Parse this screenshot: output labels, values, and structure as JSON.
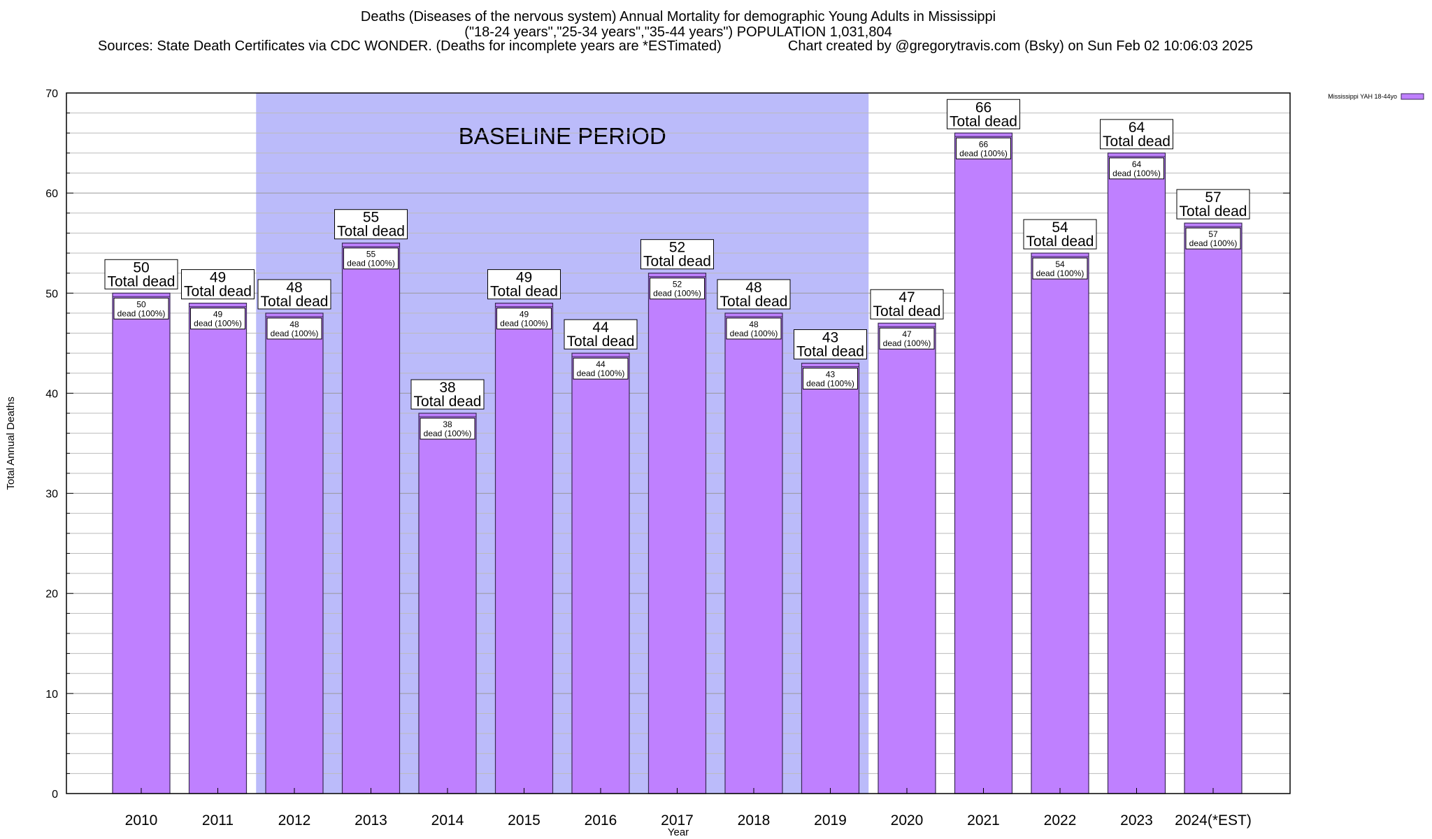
{
  "chart_data": {
    "type": "bar",
    "title_lines": [
      "Deaths (Diseases of the nervous system) Annual Mortality for demographic Young Adults in Mississippi",
      "(\"18-24 years\",\"25-34 years\",\"35-44 years\") POPULATION 1,031,804"
    ],
    "source": "Sources: State Death Certificates via CDC WONDER. (Deaths for incomplete years are *ESTimated)",
    "credit": "Chart created by @gregorytravis.com (Bsky) on Sun Feb 02 10:06:03 2025",
    "xlabel": "Year",
    "ylabel": "Total Annual Deaths",
    "ylim": [
      0,
      70
    ],
    "yticks": [
      0,
      10,
      20,
      30,
      40,
      50,
      60,
      70
    ],
    "grid": true,
    "legend_position": "top-right",
    "categories": [
      "2010",
      "2011",
      "2012",
      "2013",
      "2014",
      "2015",
      "2016",
      "2017",
      "2018",
      "2019",
      "2020",
      "2021",
      "2022",
      "2023",
      "2024(*EST)"
    ],
    "series": [
      {
        "name": "Mississippi YAH 18-44yo",
        "values": [
          50,
          49,
          48,
          55,
          38,
          49,
          44,
          52,
          48,
          43,
          47,
          66,
          54,
          64,
          57
        ]
      }
    ],
    "top_label_suffix": "Total dead",
    "inner_label_suffix": "dead (100%)",
    "baseline": {
      "label": "BASELINE PERIOD",
      "start": "2012",
      "end": "2019"
    },
    "colors": {
      "bar": "#bf80ff",
      "bar_edge": "#3a2a55",
      "baseline_band": "#bbbbfa"
    }
  }
}
